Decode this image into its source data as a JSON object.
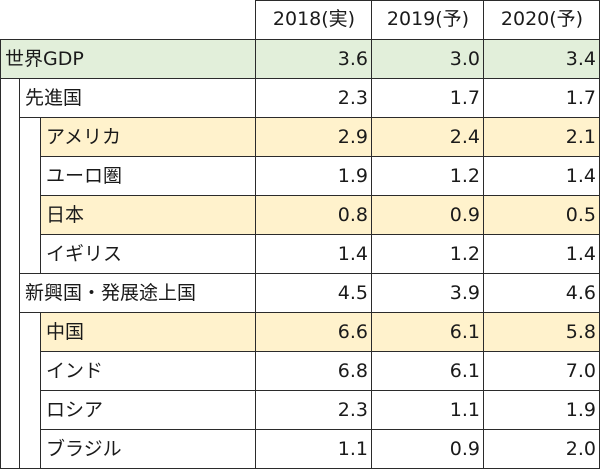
{
  "table": {
    "columns": [
      "2018(実)",
      "2019(予)",
      "2020(予)"
    ],
    "rows": [
      {
        "label": "世界GDP",
        "level": 0,
        "values": [
          "3.6",
          "3.0",
          "3.4"
        ]
      },
      {
        "label": "先進国",
        "level": 1,
        "values": [
          "2.3",
          "1.7",
          "1.7"
        ]
      },
      {
        "label": "アメリカ",
        "level": 2,
        "values": [
          "2.9",
          "2.4",
          "2.1"
        ]
      },
      {
        "label": "ユーロ圏",
        "level": 2,
        "values": [
          "1.9",
          "1.2",
          "1.4"
        ]
      },
      {
        "label": "日本",
        "level": 2,
        "values": [
          "0.8",
          "0.9",
          "0.5"
        ]
      },
      {
        "label": "イギリス",
        "level": 2,
        "values": [
          "1.4",
          "1.2",
          "1.4"
        ]
      },
      {
        "label": "新興国・発展途上国",
        "level": 1,
        "values": [
          "4.5",
          "3.9",
          "4.6"
        ]
      },
      {
        "label": "中国",
        "level": 2,
        "values": [
          "6.6",
          "6.1",
          "5.8"
        ]
      },
      {
        "label": "インド",
        "level": 2,
        "values": [
          "6.8",
          "6.1",
          "7.0"
        ]
      },
      {
        "label": "ロシア",
        "level": 2,
        "values": [
          "2.3",
          "1.1",
          "1.9"
        ]
      },
      {
        "label": "ブラジル",
        "level": 2,
        "values": [
          "1.1",
          "0.9",
          "2.0"
        ]
      }
    ]
  },
  "colors": {
    "world_row": "#e2efda",
    "highlight_row": "#fff2cc",
    "border": "#2b2b2b",
    "text": "#1a1a1a"
  },
  "highlighted_rows": [
    0,
    2,
    4,
    7
  ]
}
